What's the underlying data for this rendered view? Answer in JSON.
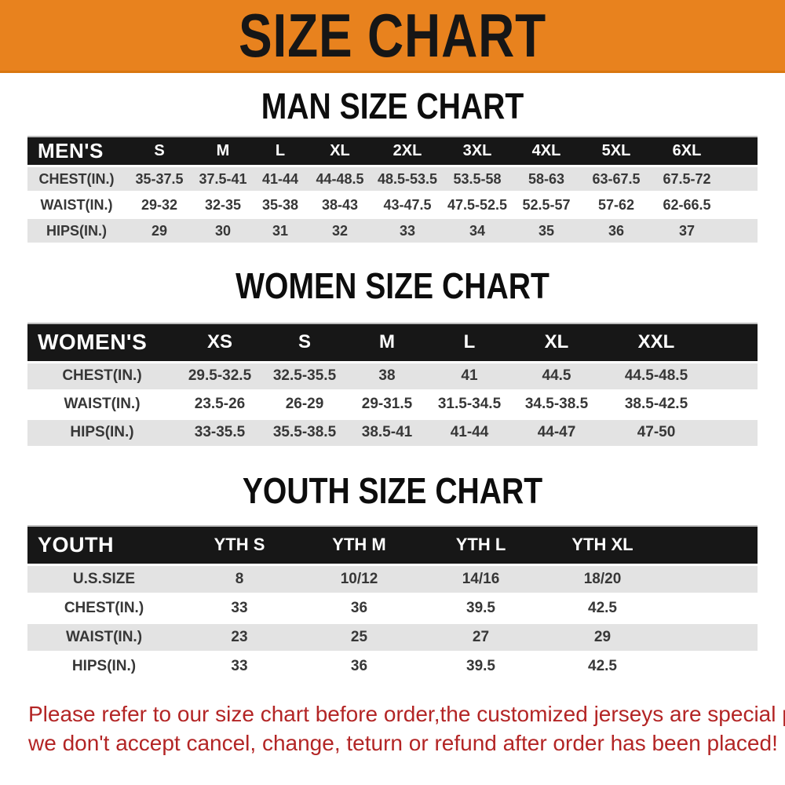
{
  "banner": {
    "title": "SIZE CHART"
  },
  "sections": [
    {
      "heading": "MAN SIZE CHART",
      "table": {
        "header_label": "MEN'S",
        "columns": [
          "S",
          "M",
          "L",
          "XL",
          "2XL",
          "3XL",
          "4XL",
          "5XL",
          "6XL"
        ],
        "rows": [
          {
            "label": "CHEST(IN.)",
            "values": [
              "35-37.5",
              "37.5-41",
              "41-44",
              "44-48.5",
              "48.5-53.5",
              "53.5-58",
              "58-63",
              "63-67.5",
              "67.5-72"
            ]
          },
          {
            "label": "WAIST(IN.)",
            "values": [
              "29-32",
              "32-35",
              "35-38",
              "38-43",
              "43-47.5",
              "47.5-52.5",
              "52.5-57",
              "57-62",
              "62-66.5"
            ]
          },
          {
            "label": "HIPS(IN.)",
            "values": [
              "29",
              "30",
              "31",
              "32",
              "33",
              "34",
              "35",
              "36",
              "37"
            ]
          }
        ]
      }
    },
    {
      "heading": "WOMEN SIZE CHART",
      "table": {
        "header_label": "WOMEN'S",
        "columns": [
          "XS",
          "S",
          "M",
          "L",
          "XL",
          "XXL"
        ],
        "rows": [
          {
            "label": "CHEST(IN.)",
            "values": [
              "29.5-32.5",
              "32.5-35.5",
              "38",
              "41",
              "44.5",
              "44.5-48.5"
            ]
          },
          {
            "label": "WAIST(IN.)",
            "values": [
              "23.5-26",
              "26-29",
              "29-31.5",
              "31.5-34.5",
              "34.5-38.5",
              "38.5-42.5"
            ]
          },
          {
            "label": "HIPS(IN.)",
            "values": [
              "33-35.5",
              "35.5-38.5",
              "38.5-41",
              "41-44",
              "44-47",
              "47-50"
            ]
          }
        ]
      }
    },
    {
      "heading": "YOUTH SIZE CHART",
      "table": {
        "header_label": "YOUTH",
        "columns": [
          "YTH S",
          "YTH M",
          "YTH L",
          "YTH XL"
        ],
        "rows": [
          {
            "label": "U.S.SIZE",
            "values": [
              "8",
              "10/12",
              "14/16",
              "18/20"
            ]
          },
          {
            "label": "CHEST(IN.)",
            "values": [
              "33",
              "36",
              "39.5",
              "42.5"
            ]
          },
          {
            "label": "WAIST(IN.)",
            "values": [
              "23",
              "25",
              "27",
              "29"
            ]
          },
          {
            "label": "HIPS(IN.)",
            "values": [
              "33",
              "36",
              "39.5",
              "42.5"
            ]
          }
        ]
      }
    }
  ],
  "footer": {
    "line1": "Please refer to our size chart before order,the customized jerseys are special products,",
    "line2": "we don't accept cancel, change, teturn or refund after order has been placed!"
  },
  "colors": {
    "banner_bg": "#E8821E",
    "banner_text": "#161616",
    "table_header_bg": "#171717",
    "table_header_text": "#FFFFFF",
    "row_stripe": "#E3E3E3",
    "cell_text": "#373737",
    "footer_text": "#B32525"
  }
}
